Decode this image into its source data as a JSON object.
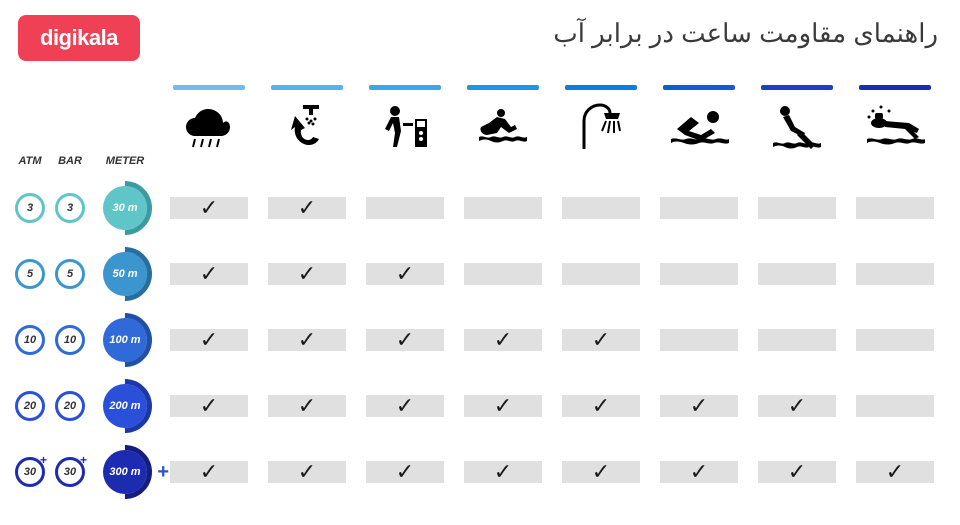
{
  "logo": "digikala",
  "title": "راهنمای مقاومت ساعت در برابر آب",
  "headers": {
    "atm": "ATM",
    "bar": "BAR",
    "meter": "METER"
  },
  "checkmark": "✓",
  "plus_symbol": "+",
  "style": {
    "logo_bg": "#ef4056",
    "cell_bg": "#e0e0e0",
    "check_color": "#1a1a1a",
    "title_color": "#3a3a3a",
    "plus_color": "#2a4fd8"
  },
  "activities": [
    {
      "name": "rain",
      "bar_color": "#6fbdf0",
      "icon": "rain"
    },
    {
      "name": "wash",
      "bar_color": "#55b2ee",
      "icon": "wash"
    },
    {
      "name": "work",
      "bar_color": "#3ba6ec",
      "icon": "work"
    },
    {
      "name": "jetski",
      "bar_color": "#2094e8",
      "icon": "jetski"
    },
    {
      "name": "shower",
      "bar_color": "#0a7de0",
      "icon": "shower"
    },
    {
      "name": "swim",
      "bar_color": "#0f5bd8",
      "icon": "swim"
    },
    {
      "name": "dive",
      "bar_color": "#1a3fc8",
      "icon": "dive"
    },
    {
      "name": "scuba",
      "bar_color": "#1d2bb0",
      "icon": "scuba"
    }
  ],
  "rows": [
    {
      "atm": "3",
      "bar": "3",
      "meter": "30 m",
      "atm_color": "#5fc5c9",
      "bar_color": "#5fc5c9",
      "meter_fill": "#5fc5c9",
      "meter_ring": "#3a9ca0",
      "plus": false,
      "checks": [
        true,
        true,
        false,
        false,
        false,
        false,
        false,
        false
      ]
    },
    {
      "atm": "5",
      "bar": "5",
      "meter": "50 m",
      "atm_color": "#3b96d0",
      "bar_color": "#3b96d0",
      "meter_fill": "#3b96d0",
      "meter_ring": "#2a6ea0",
      "plus": false,
      "checks": [
        true,
        true,
        true,
        false,
        false,
        false,
        false,
        false
      ]
    },
    {
      "atm": "10",
      "bar": "10",
      "meter": "100 m",
      "atm_color": "#2f6ad8",
      "bar_color": "#2f6ad8",
      "meter_fill": "#2f6ad8",
      "meter_ring": "#2050a8",
      "plus": false,
      "checks": [
        true,
        true,
        true,
        true,
        true,
        false,
        false,
        false
      ]
    },
    {
      "atm": "20",
      "bar": "20",
      "meter": "200 m",
      "atm_color": "#2a4fd8",
      "bar_color": "#2a4fd8",
      "meter_fill": "#2a4fd8",
      "meter_ring": "#1c38a8",
      "plus": false,
      "checks": [
        true,
        true,
        true,
        true,
        true,
        true,
        true,
        false
      ]
    },
    {
      "atm": "30",
      "bar": "30",
      "meter": "300 m",
      "atm_color": "#1d2bb0",
      "bar_color": "#1d2bb0",
      "meter_fill": "#1d2bb0",
      "meter_ring": "#141d80",
      "plus": true,
      "checks": [
        true,
        true,
        true,
        true,
        true,
        true,
        true,
        true
      ]
    }
  ],
  "icons": {
    "rain": "<svg width='52' height='46' viewBox='0 0 52 46'><path fill='#000' d='M40 20c0-8-7-14-15-14-6 0-11 4-13 9-5 0-9 4-9 9 0 5 4 9 9 9h26c5 0 9-4 9-9 0-4-3-8-7-4z'/><g stroke='#000' stroke-width='2'><line x1='12' y1='36' x2='10' y2='44'/><line x1='20' y1='36' x2='18' y2='44'/><line x1='28' y1='36' x2='26' y2='44'/><line x1='36' y1='36' x2='34' y2='44'/></g></svg>",
    "wash": "<svg width='52' height='46' viewBox='0 0 52 46'><path fill='#000' d='M14 24c-2 10 6 18 14 18 4 0 8-2 10-6l-6-2c-1 2-3 3-5 3-4 0-8-4-7-10l4-2-10-12-4 14 4-3z'/><rect x='28' y='4' width='4' height='8' fill='#000'/><rect x='22' y='2' width='16' height='4' fill='#000'/><g fill='#000'><circle cx='26' cy='16' r='1.5'/><circle cx='30' cy='18' r='1.5'/><circle cx='34' cy='16' r='1.5'/><circle cx='28' cy='20' r='1.5'/><circle cx='32' cy='21' r='1.5'/></g></svg>",
    "work": "<svg width='52' height='46' viewBox='0 0 52 46'><circle cx='16' cy='8' r='5' fill='#000'/><path fill='#000' d='M12 14h8l2 14-4 16h-4l2-14-2-10-4 8-4-2 6-12z'/><rect x='24' y='20' width='10' height='3' fill='#000'/><rect x='36' y='16' width='12' height='28' fill='#000'/><rect x='38' y='18' width='8' height='6' fill='#fff'/><circle cx='42' cy='30' r='2' fill='#fff'/><circle cx='42' cy='36' r='2' fill='#fff'/></svg>",
    "jetski": "<svg width='56' height='46' viewBox='0 0 56 46'><circle cx='26' cy='10' r='4' fill='#000'/><path fill='#000' d='M22 14l8 2 6 8 4-2 2 4-8 4-8-6-4 6-10 2c-4 0-8-4-6-8l8-4 8-6z'/><path fill='#000' d='M4 34c4-2 8 2 12 0s8 2 12 0 8 2 12 0 8 2 12 0v4c-4 2-8-2-12 0s-8-2-12 0-8 2-12 0-8-2-12 0v-4z'/></svg>",
    "shower": "<svg width='46' height='50' viewBox='0 0 46 50'><path fill='none' stroke='#000' stroke-width='3' d='M6 48V20c0-10 8-16 16-16 6 0 10 4 10 8'/><path fill='#000' d='M26 12h16l-2 6H28z'/><g stroke='#000' stroke-width='2'><line x1='28' y1='20' x2='24' y2='30'/><line x1='32' y1='20' x2='30' y2='32'/><line x1='36' y1='20' x2='36' y2='32'/><line x1='40' y1='20' x2='42' y2='30'/></g></svg>",
    "swim": "<svg width='60' height='46' viewBox='0 0 60 46'><circle cx='44' cy='14' r='6' fill='#000'/><path fill='#000' d='M8 26l14-12 8 6-10 8 12 4 10-6 4 4-14 8-16-6-8-6z'/><path fill='#000' d='M2 36c5-2 10 2 15 0s10 2 15 0 10 2 15 0 10 2 13 0v4c-5 2-10-2-15 0s-10-2-15 0-10 2-15 0-10-2-13 0v-4z'/></svg>",
    "dive": "<svg width='52' height='50' viewBox='0 0 52 50'><circle cx='14' cy='10' r='5' fill='#000'/><path fill='#000' d='M18 14l6 12 10 6-2 4-12-6-8-14 6-2z M30 30l14 14-4 4-14-14z'/><path fill='#000' d='M2 42c4-2 8 2 12 0s8 2 12 0 8 2 12 0 8 2 12 0v4c-4 2-8-2-12 0s-8-2-12 0-8 2-12 0-8-2-12 0v-4z'/></svg>",
    "scuba": "<svg width='60' height='46' viewBox='0 0 60 46'><ellipse cx='14' cy='20' rx='8' ry='5' fill='#000'/><rect x='10' y='10' width='8' height='6' rx='2' fill='#000'/><path fill='#000' d='M20 18l24 2 10 6-2 4-12-4-20-2z M44 24l10 10-4 2-10-10z'/><g fill='#000'><circle cx='8' cy='8' r='1.5'/><circle cx='16' cy='4' r='1.5'/><circle cx='24' cy='8' r='1.5'/><circle cx='4' cy='14' r='1.5'/></g><path fill='#000' d='M2 36c5-2 10 2 15 0s10 2 15 0 10 2 15 0 10 2 13 0v4c-5 2-10-2-15 0s-10-2-15 0-10 2-15 0-10-2-13 0v-4z'/></svg>"
  }
}
